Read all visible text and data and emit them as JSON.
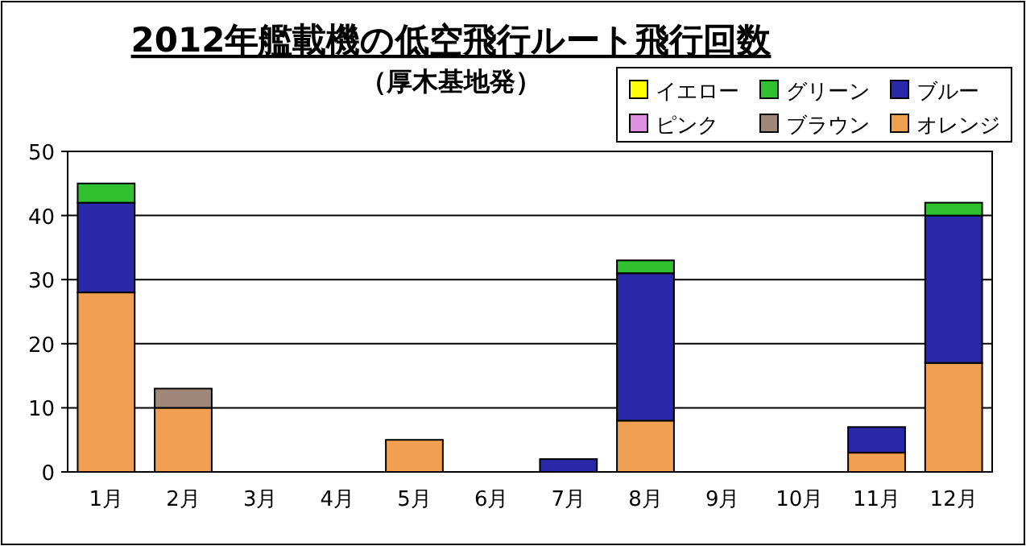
{
  "chart_data": {
    "type": "bar",
    "stacked": true,
    "title": "2012年艦載機の低空飛行ルート飛行回数",
    "subtitle": "（厚木基地発）",
    "categories": [
      "1月",
      "2月",
      "3月",
      "4月",
      "5月",
      "6月",
      "7月",
      "8月",
      "9月",
      "10月",
      "11月",
      "12月"
    ],
    "series": [
      {
        "name": "オレンジ",
        "color": "#f0a050",
        "values": [
          28,
          10,
          0,
          0,
          5,
          0,
          0,
          8,
          0,
          0,
          3,
          17
        ]
      },
      {
        "name": "ブラウン",
        "color": "#a08878",
        "values": [
          0,
          3,
          0,
          0,
          0,
          0,
          0,
          0,
          0,
          0,
          0,
          0
        ]
      },
      {
        "name": "ピンク",
        "color": "#e090e0",
        "values": [
          0,
          0,
          0,
          0,
          0,
          0,
          0,
          0,
          0,
          0,
          0,
          0
        ]
      },
      {
        "name": "ブルー",
        "color": "#2828a8",
        "values": [
          14,
          0,
          0,
          0,
          0,
          0,
          2,
          23,
          0,
          0,
          4,
          23
        ]
      },
      {
        "name": "グリーン",
        "color": "#30c030",
        "values": [
          3,
          0,
          0,
          0,
          0,
          0,
          0,
          2,
          0,
          0,
          0,
          2
        ]
      },
      {
        "name": "イエロー",
        "color": "#ffff00",
        "values": [
          0,
          0,
          0,
          0,
          0,
          0,
          0,
          0,
          0,
          0,
          0,
          0
        ]
      }
    ],
    "ylim": [
      0,
      50
    ],
    "yticks": [
      0,
      10,
      20,
      30,
      40,
      50
    ],
    "grid": "y",
    "legend": "top right"
  }
}
